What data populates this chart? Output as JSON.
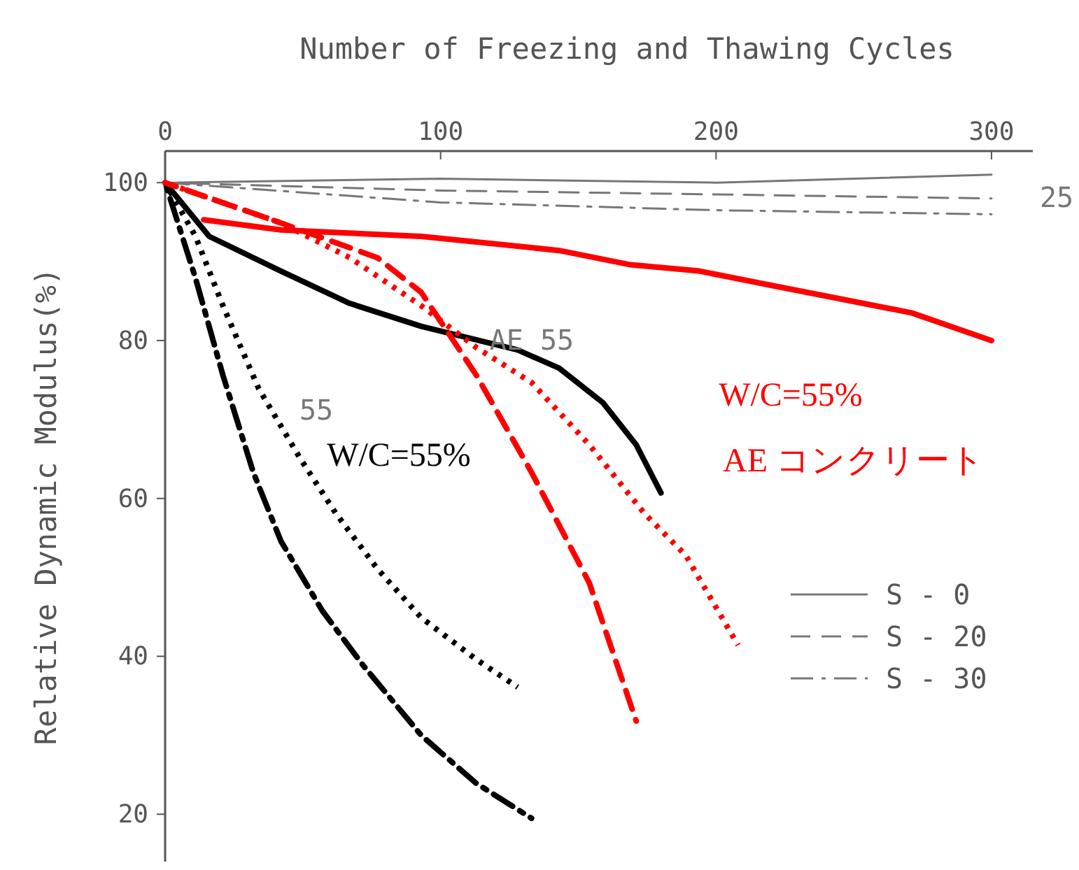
{
  "chart_data": {
    "type": "line",
    "xlabel": "Number of Freezing and Thawing Cycles",
    "ylabel": "Relative Dynamic Modulus(%)",
    "xlim": [
      0,
      315
    ],
    "ylim": [
      14,
      104
    ],
    "xticks": [
      0,
      100,
      200,
      300
    ],
    "yticks": [
      20,
      40,
      60,
      80,
      100
    ],
    "legend": "bottom right",
    "series": [
      {
        "name": "S - 0",
        "color": "#777777",
        "line_style": "solid",
        "x": [
          0,
          100,
          200,
          300
        ],
        "values": [
          100,
          100.5,
          100,
          101
        ]
      },
      {
        "name": "S - 20",
        "color": "#777777",
        "line_style": "dashed",
        "x": [
          0,
          100,
          200,
          300
        ],
        "values": [
          100,
          99,
          98.5,
          98
        ]
      },
      {
        "name": "S - 30",
        "color": "#777777",
        "line_style": "dashdot",
        "x": [
          0,
          100,
          200,
          300
        ],
        "values": [
          100,
          97.5,
          96.5,
          96
        ]
      },
      {
        "color": "#000000",
        "line_style": "solid",
        "x": [
          0,
          16,
          42,
          67,
          93,
          108,
          128,
          143,
          159,
          171,
          180
        ],
        "values": [
          100,
          93.2,
          88.8,
          84.7,
          81.8,
          80.5,
          78.8,
          76.5,
          72.1,
          66.8,
          60.7
        ]
      },
      {
        "color": "#000000",
        "line_style": "dotted",
        "x": [
          0,
          11,
          21,
          34,
          49,
          62,
          77,
          93,
          113,
          128
        ],
        "values": [
          100,
          93.2,
          84.4,
          73.9,
          65.1,
          58.1,
          51.1,
          44.9,
          39.6,
          36.1
        ]
      },
      {
        "color": "#000000",
        "line_style": "dashdot",
        "x": [
          0,
          11,
          21,
          32,
          42,
          57,
          72,
          93,
          113,
          133
        ],
        "values": [
          100,
          87.9,
          75.6,
          63.3,
          54.6,
          45.8,
          38.8,
          30,
          23.9,
          19.5
        ]
      },
      {
        "color": "#ff0000",
        "line_style": "solid",
        "x": [
          14,
          42,
          93,
          118,
          143,
          169,
          194,
          220,
          245,
          271,
          300
        ],
        "values": [
          95.3,
          94,
          93.2,
          92.3,
          91.4,
          89.6,
          88.8,
          87,
          85.3,
          83.5,
          80
        ]
      },
      {
        "color": "#ff0000",
        "line_style": "dotted",
        "x": [
          0,
          42,
          67,
          93,
          113,
          133,
          154,
          174,
          189,
          208
        ],
        "values": [
          100,
          94.9,
          90.5,
          84.4,
          79.1,
          74.7,
          66.8,
          58.1,
          52.8,
          41.4
        ]
      },
      {
        "color": "#ff0000",
        "line_style": "dashed",
        "x": [
          0,
          42,
          77,
          93,
          113,
          133,
          154,
          171
        ],
        "values": [
          100,
          94.9,
          90.5,
          86.1,
          75.6,
          63.3,
          49.3,
          31.8
        ]
      }
    ],
    "annotations": [
      "25",
      "AE 55",
      "55",
      "W/C=55%",
      "W/C=55%",
      "AE コンクリート"
    ]
  }
}
